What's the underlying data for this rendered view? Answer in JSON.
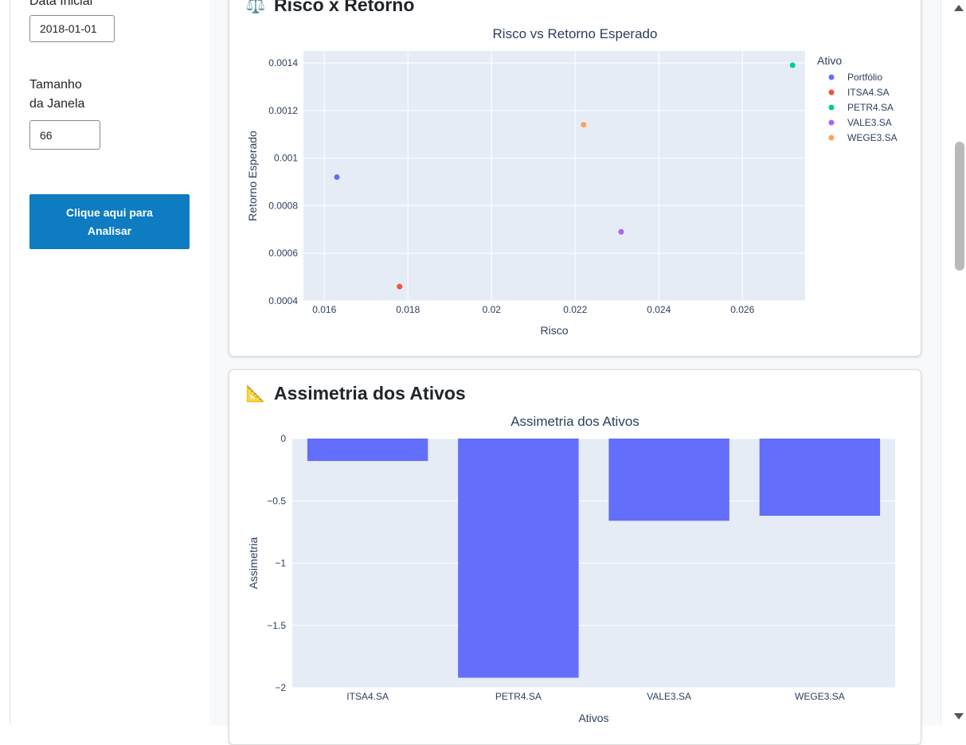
{
  "sidebar": {
    "start_date_label": "Data Inicial",
    "start_date_value": "2018-01-01",
    "window_label_line1": "Tamanho",
    "window_label_line2": "da Janela",
    "window_value": "66",
    "analyze_button": "Clique aqui para Analisar"
  },
  "cards": {
    "risk_return": {
      "title": "Risco x Retorno",
      "icon": "balance-scale-icon"
    },
    "skewness": {
      "title": "Assimetria dos Ativos",
      "icon": "triangular-ruler-icon"
    }
  },
  "colors": {
    "plot_bg": "#e5ecf6",
    "bar": "#636efa",
    "accent_button": "#0d7cc1"
  },
  "chart_data": [
    {
      "type": "scatter",
      "title": "Risco vs Retorno Esperado",
      "xlabel": "Risco",
      "ylabel": "Retorno Esperado",
      "xlim": [
        0.0155,
        0.0275
      ],
      "ylim": [
        0.0004,
        0.00145
      ],
      "x_ticks": [
        0.016,
        0.018,
        0.02,
        0.022,
        0.024,
        0.026
      ],
      "x_tick_labels": [
        "0.016",
        "0.018",
        "0.02",
        "0.022",
        "0.024",
        "0.026"
      ],
      "y_ticks": [
        0.0004,
        0.0006,
        0.0008,
        0.001,
        0.0012,
        0.0014
      ],
      "y_tick_labels": [
        "0.0004",
        "0.0006",
        "0.0008",
        "0.001",
        "0.0012",
        "0.0014"
      ],
      "legend_title": "Ativo",
      "legend_position": "top-right",
      "grid": true,
      "series": [
        {
          "name": "Portfólio",
          "color": "#636efa",
          "x": [
            0.0163
          ],
          "y": [
            0.00092
          ]
        },
        {
          "name": "ITSA4.SA",
          "color": "#ef553b",
          "x": [
            0.0178
          ],
          "y": [
            0.00046
          ]
        },
        {
          "name": "PETR4.SA",
          "color": "#00cc96",
          "x": [
            0.0272
          ],
          "y": [
            0.00139
          ]
        },
        {
          "name": "VALE3.SA",
          "color": "#ab63fa",
          "x": [
            0.0231
          ],
          "y": [
            0.00069
          ]
        },
        {
          "name": "WEGE3.SA",
          "color": "#ffa15a",
          "x": [
            0.0222
          ],
          "y": [
            0.00114
          ]
        }
      ]
    },
    {
      "type": "bar",
      "title": "Assimetria dos Ativos",
      "xlabel": "Ativos",
      "ylabel": "Assimetria",
      "categories": [
        "ITSA4.SA",
        "PETR4.SA",
        "VALE3.SA",
        "WEGE3.SA"
      ],
      "values": [
        -0.18,
        -1.92,
        -0.66,
        -0.62
      ],
      "ylim": [
        -2,
        0
      ],
      "y_ticks": [
        0,
        -0.5,
        -1,
        -1.5,
        -2
      ],
      "y_tick_labels": [
        "0",
        "−0.5",
        "−1",
        "−1.5",
        "−2"
      ],
      "grid": true
    }
  ]
}
